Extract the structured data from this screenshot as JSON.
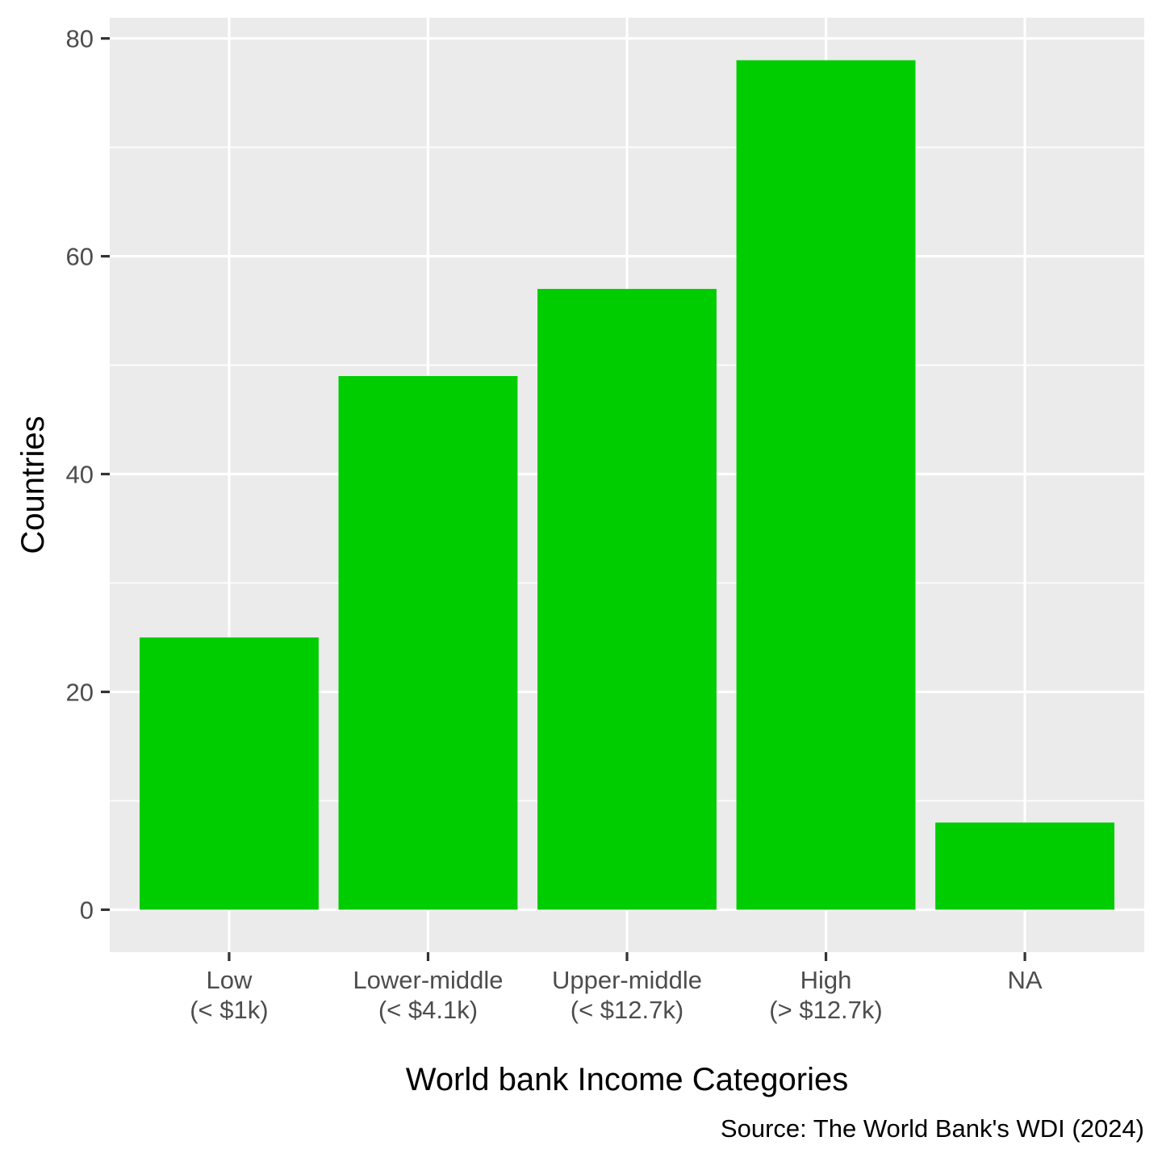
{
  "chart_data": {
    "type": "bar",
    "title": "",
    "xlabel": "World bank Income Categories",
    "ylabel": "Countries",
    "caption": "Source: The World Bank's WDI (2024)",
    "categories": [
      [
        "Low",
        "(< $1k)"
      ],
      [
        "Lower-middle",
        "(< $4.1k)"
      ],
      [
        "Upper-middle",
        "(< $12.7k)"
      ],
      [
        "High",
        "(> $12.7k)"
      ],
      [
        "NA"
      ]
    ],
    "values": [
      25,
      49,
      57,
      78,
      8
    ],
    "ylim": [
      -3.9,
      81.9
    ],
    "yticks": [
      0,
      20,
      40,
      60,
      80
    ],
    "grid": true,
    "legend": "none",
    "colors": {
      "bar": "#00cd00",
      "panel": "#ebebeb",
      "grid": "#ffffff",
      "tick": "#333333",
      "tick_label": "#4d4d4d"
    }
  }
}
